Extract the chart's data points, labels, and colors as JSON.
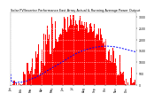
{
  "title": "Solar PV/Inverter Performance East Array Actual & Running Average Power Output",
  "background_color": "#ffffff",
  "grid_color": "#c8c8c8",
  "bar_color": "#ff0000",
  "line_color": "#0000ff",
  "ytick_labels": [
    "3000",
    "2500",
    "2000",
    "1500",
    "1000",
    "500",
    "0"
  ],
  "ytick_values": [
    3000,
    2500,
    2000,
    1500,
    1000,
    500,
    0
  ],
  "n_points": 365,
  "ylim": [
    0,
    3200
  ],
  "xlim": [
    0,
    365
  ],
  "xlabel_ticks": [
    "Jan",
    "",
    "Feb",
    "",
    "Mar",
    "",
    "Apr",
    "",
    "May",
    "",
    "Jun",
    "",
    "Jul",
    "",
    "Aug",
    "",
    "Sep",
    "",
    "Oct",
    "",
    "Nov",
    "",
    "Dec",
    ""
  ],
  "month_boundaries": [
    0,
    31,
    59,
    90,
    120,
    151,
    181,
    212,
    243,
    273,
    304,
    334,
    365
  ]
}
